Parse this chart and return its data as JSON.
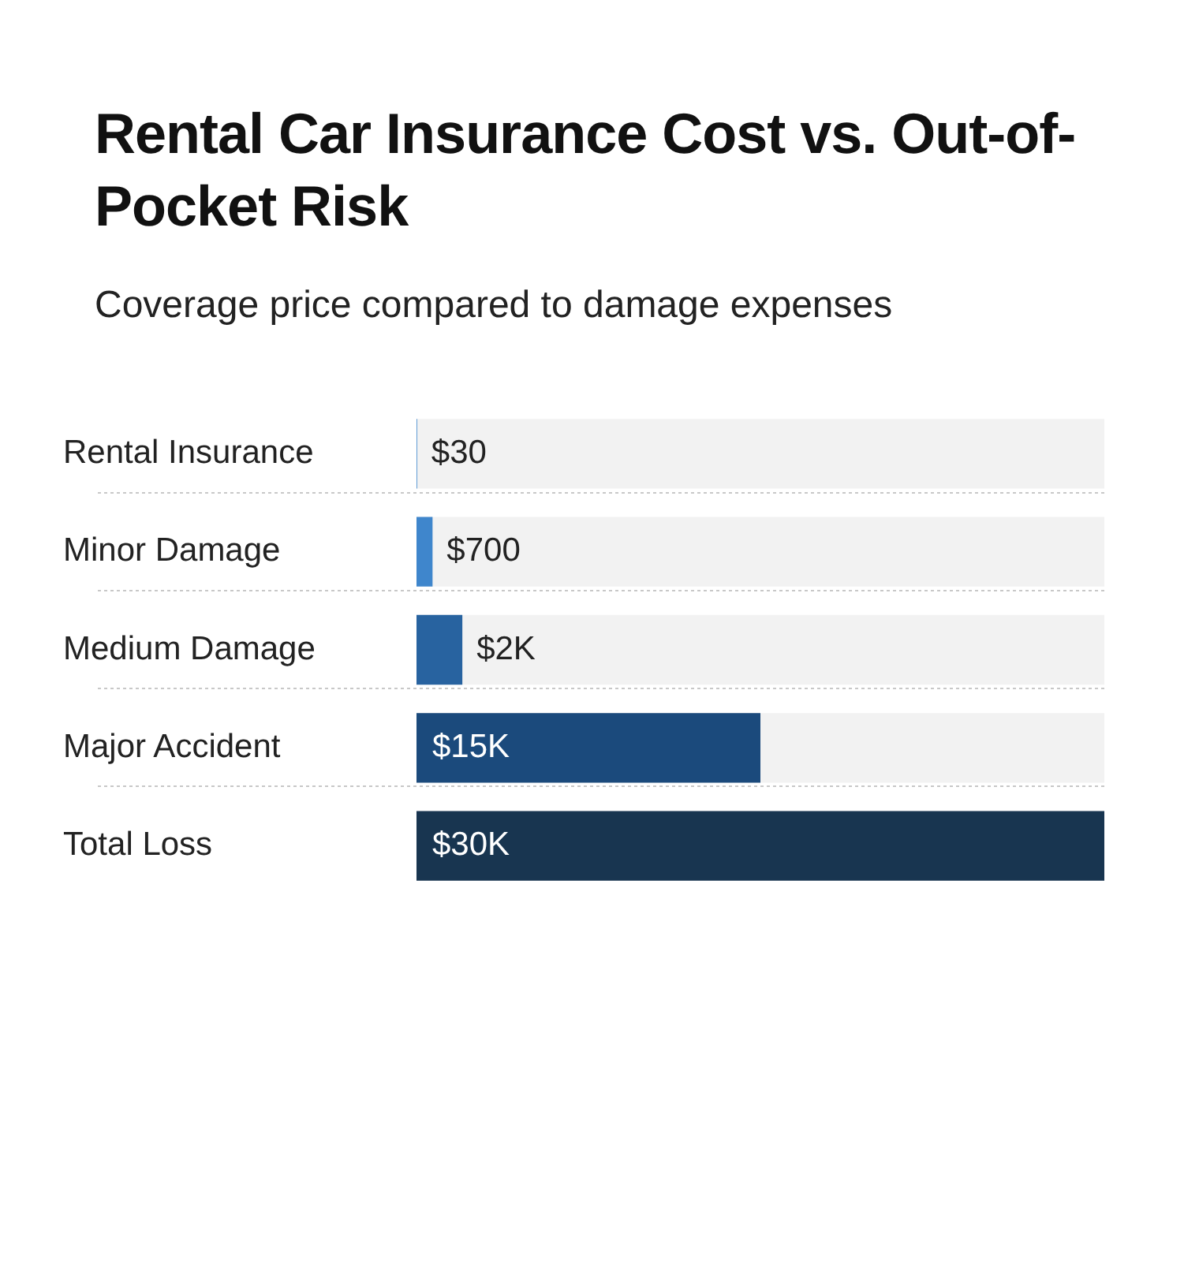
{
  "chart_data": {
    "type": "bar",
    "orientation": "horizontal",
    "title": "Rental Car Insurance Cost vs. Out-of-Pocket Risk",
    "subtitle": "Coverage price compared to damage expenses",
    "categories": [
      "Rental Insurance",
      "Minor Damage",
      "Medium Damage",
      "Major Accident",
      "Total Loss"
    ],
    "values": [
      30,
      700,
      2000,
      15000,
      30000
    ],
    "colors": [
      "#4a8fd0",
      "#3f86cc",
      "#2863a0",
      "#1b4a7c",
      "#183550"
    ],
    "value_labels": [
      "$30",
      "$700",
      "$2K",
      "$15K",
      "$30K"
    ],
    "xlim": [
      0,
      30000
    ],
    "grid": false,
    "legend": false,
    "tick_labels": "y"
  }
}
